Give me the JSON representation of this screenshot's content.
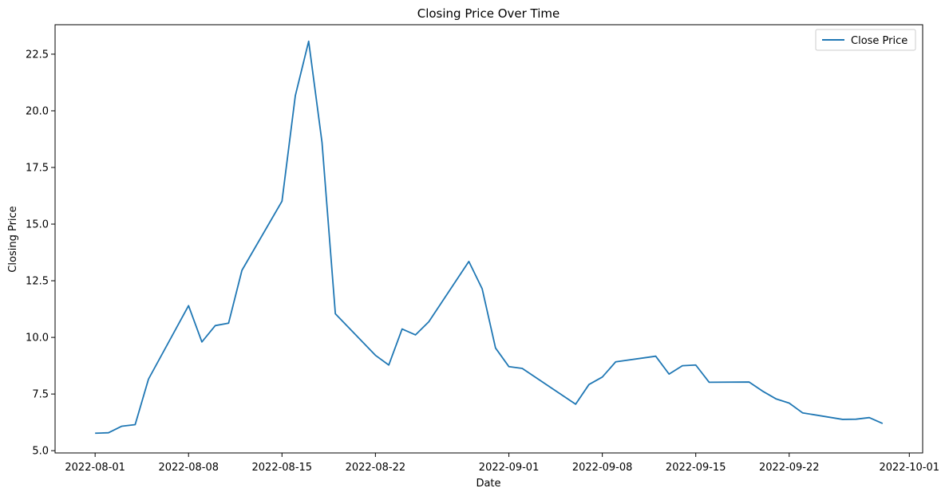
{
  "chart_data": {
    "type": "line",
    "title": "Closing Price Over Time",
    "xlabel": "Date",
    "ylabel": "Closing Price",
    "xlim": [
      "2022-07-29",
      "2022-10-02"
    ],
    "ylim": [
      4.9,
      23.8
    ],
    "x_ticks": [
      "2022-08-01",
      "2022-08-08",
      "2022-08-15",
      "2022-08-22",
      "2022-09-01",
      "2022-09-08",
      "2022-09-15",
      "2022-09-22",
      "2022-10-01"
    ],
    "y_ticks": [
      5.0,
      7.5,
      10.0,
      12.5,
      15.0,
      17.5,
      20.0,
      22.5
    ],
    "y_tick_labels": [
      "5.0",
      "7.5",
      "10.0",
      "12.5",
      "15.0",
      "17.5",
      "20.0",
      "22.5"
    ],
    "grid": false,
    "legend_position": "top-right",
    "series": [
      {
        "name": "Close Price",
        "color": "#1f77b4",
        "x": [
          "2022-08-01",
          "2022-08-02",
          "2022-08-03",
          "2022-08-04",
          "2022-08-05",
          "2022-08-08",
          "2022-08-09",
          "2022-08-10",
          "2022-08-11",
          "2022-08-12",
          "2022-08-15",
          "2022-08-16",
          "2022-08-17",
          "2022-08-18",
          "2022-08-19",
          "2022-08-22",
          "2022-08-23",
          "2022-08-24",
          "2022-08-25",
          "2022-08-26",
          "2022-08-29",
          "2022-08-30",
          "2022-08-31",
          "2022-09-01",
          "2022-09-02",
          "2022-09-06",
          "2022-09-07",
          "2022-09-08",
          "2022-09-09",
          "2022-09-12",
          "2022-09-13",
          "2022-09-14",
          "2022-09-15",
          "2022-09-16",
          "2022-09-19",
          "2022-09-20",
          "2022-09-21",
          "2022-09-22",
          "2022-09-23",
          "2022-09-26",
          "2022-09-27",
          "2022-09-28",
          "2022-09-29"
        ],
        "values": [
          5.77,
          5.79,
          6.08,
          6.15,
          8.16,
          11.4,
          9.8,
          10.52,
          10.63,
          12.96,
          16.01,
          20.67,
          23.07,
          18.6,
          11.04,
          9.21,
          8.78,
          10.37,
          10.11,
          10.69,
          13.35,
          12.14,
          9.53,
          8.71,
          8.63,
          7.05,
          7.92,
          8.25,
          8.92,
          9.17,
          8.38,
          8.75,
          8.78,
          8.02,
          8.03,
          7.63,
          7.29,
          7.1,
          6.67,
          6.38,
          6.39,
          6.46,
          6.2
        ]
      }
    ]
  }
}
